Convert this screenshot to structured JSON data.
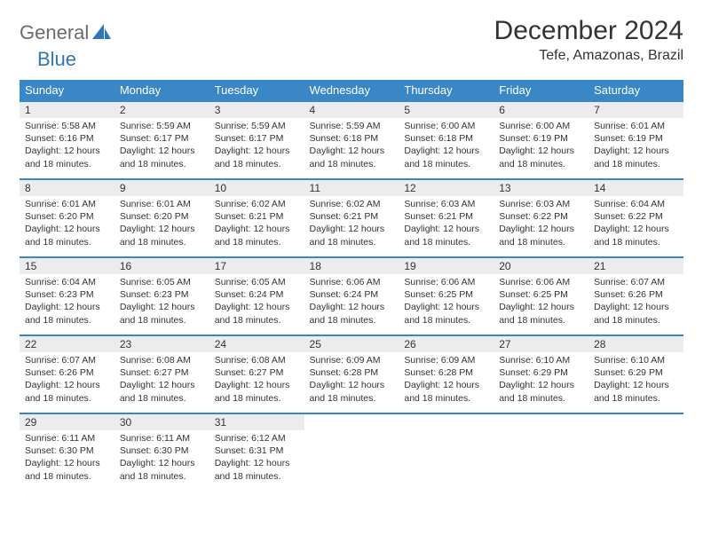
{
  "brand": {
    "part1": "General",
    "part2": "Blue",
    "icon_color": "#2f77b8"
  },
  "header": {
    "title": "December 2024",
    "location": "Tefe, Amazonas, Brazil"
  },
  "colors": {
    "header_bg": "#3a87c8",
    "header_text": "#ffffff",
    "daynum_bg": "#ececec",
    "cell_border": "#3a87c8",
    "body_text": "#333333",
    "page_bg": "#ffffff"
  },
  "weekdays": [
    "Sunday",
    "Monday",
    "Tuesday",
    "Wednesday",
    "Thursday",
    "Friday",
    "Saturday"
  ],
  "days": [
    {
      "n": 1,
      "sunrise": "5:58 AM",
      "sunset": "6:16 PM",
      "daylight": "12 hours and 18 minutes."
    },
    {
      "n": 2,
      "sunrise": "5:59 AM",
      "sunset": "6:17 PM",
      "daylight": "12 hours and 18 minutes."
    },
    {
      "n": 3,
      "sunrise": "5:59 AM",
      "sunset": "6:17 PM",
      "daylight": "12 hours and 18 minutes."
    },
    {
      "n": 4,
      "sunrise": "5:59 AM",
      "sunset": "6:18 PM",
      "daylight": "12 hours and 18 minutes."
    },
    {
      "n": 5,
      "sunrise": "6:00 AM",
      "sunset": "6:18 PM",
      "daylight": "12 hours and 18 minutes."
    },
    {
      "n": 6,
      "sunrise": "6:00 AM",
      "sunset": "6:19 PM",
      "daylight": "12 hours and 18 minutes."
    },
    {
      "n": 7,
      "sunrise": "6:01 AM",
      "sunset": "6:19 PM",
      "daylight": "12 hours and 18 minutes."
    },
    {
      "n": 8,
      "sunrise": "6:01 AM",
      "sunset": "6:20 PM",
      "daylight": "12 hours and 18 minutes."
    },
    {
      "n": 9,
      "sunrise": "6:01 AM",
      "sunset": "6:20 PM",
      "daylight": "12 hours and 18 minutes."
    },
    {
      "n": 10,
      "sunrise": "6:02 AM",
      "sunset": "6:21 PM",
      "daylight": "12 hours and 18 minutes."
    },
    {
      "n": 11,
      "sunrise": "6:02 AM",
      "sunset": "6:21 PM",
      "daylight": "12 hours and 18 minutes."
    },
    {
      "n": 12,
      "sunrise": "6:03 AM",
      "sunset": "6:21 PM",
      "daylight": "12 hours and 18 minutes."
    },
    {
      "n": 13,
      "sunrise": "6:03 AM",
      "sunset": "6:22 PM",
      "daylight": "12 hours and 18 minutes."
    },
    {
      "n": 14,
      "sunrise": "6:04 AM",
      "sunset": "6:22 PM",
      "daylight": "12 hours and 18 minutes."
    },
    {
      "n": 15,
      "sunrise": "6:04 AM",
      "sunset": "6:23 PM",
      "daylight": "12 hours and 18 minutes."
    },
    {
      "n": 16,
      "sunrise": "6:05 AM",
      "sunset": "6:23 PM",
      "daylight": "12 hours and 18 minutes."
    },
    {
      "n": 17,
      "sunrise": "6:05 AM",
      "sunset": "6:24 PM",
      "daylight": "12 hours and 18 minutes."
    },
    {
      "n": 18,
      "sunrise": "6:06 AM",
      "sunset": "6:24 PM",
      "daylight": "12 hours and 18 minutes."
    },
    {
      "n": 19,
      "sunrise": "6:06 AM",
      "sunset": "6:25 PM",
      "daylight": "12 hours and 18 minutes."
    },
    {
      "n": 20,
      "sunrise": "6:06 AM",
      "sunset": "6:25 PM",
      "daylight": "12 hours and 18 minutes."
    },
    {
      "n": 21,
      "sunrise": "6:07 AM",
      "sunset": "6:26 PM",
      "daylight": "12 hours and 18 minutes."
    },
    {
      "n": 22,
      "sunrise": "6:07 AM",
      "sunset": "6:26 PM",
      "daylight": "12 hours and 18 minutes."
    },
    {
      "n": 23,
      "sunrise": "6:08 AM",
      "sunset": "6:27 PM",
      "daylight": "12 hours and 18 minutes."
    },
    {
      "n": 24,
      "sunrise": "6:08 AM",
      "sunset": "6:27 PM",
      "daylight": "12 hours and 18 minutes."
    },
    {
      "n": 25,
      "sunrise": "6:09 AM",
      "sunset": "6:28 PM",
      "daylight": "12 hours and 18 minutes."
    },
    {
      "n": 26,
      "sunrise": "6:09 AM",
      "sunset": "6:28 PM",
      "daylight": "12 hours and 18 minutes."
    },
    {
      "n": 27,
      "sunrise": "6:10 AM",
      "sunset": "6:29 PM",
      "daylight": "12 hours and 18 minutes."
    },
    {
      "n": 28,
      "sunrise": "6:10 AM",
      "sunset": "6:29 PM",
      "daylight": "12 hours and 18 minutes."
    },
    {
      "n": 29,
      "sunrise": "6:11 AM",
      "sunset": "6:30 PM",
      "daylight": "12 hours and 18 minutes."
    },
    {
      "n": 30,
      "sunrise": "6:11 AM",
      "sunset": "6:30 PM",
      "daylight": "12 hours and 18 minutes."
    },
    {
      "n": 31,
      "sunrise": "6:12 AM",
      "sunset": "6:31 PM",
      "daylight": "12 hours and 18 minutes."
    }
  ],
  "layout": {
    "start_weekday": 0,
    "rows": 5,
    "cols": 7
  },
  "labels": {
    "sunrise": "Sunrise:",
    "sunset": "Sunset:",
    "daylight": "Daylight:"
  }
}
